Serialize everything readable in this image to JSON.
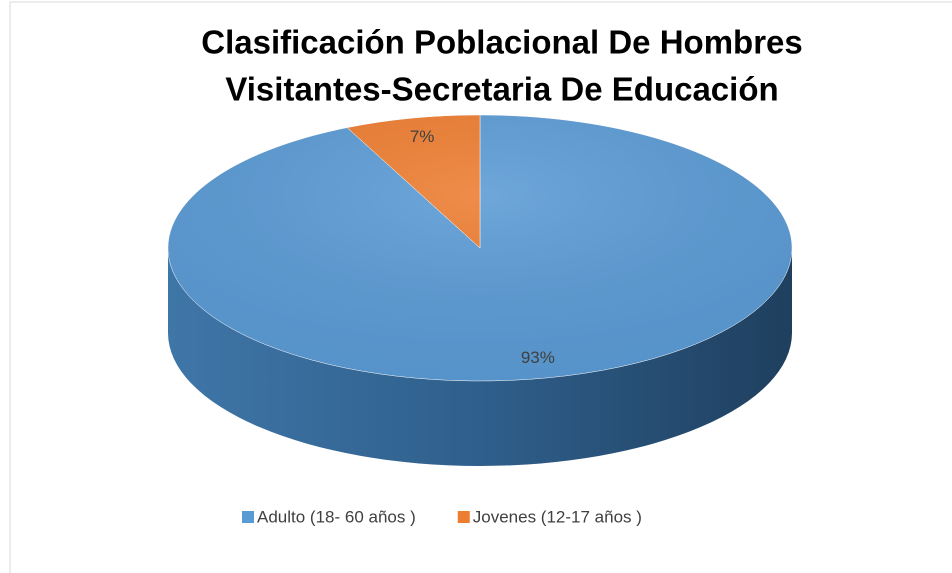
{
  "chart_data": {
    "type": "pie",
    "title": [
      "Clasificación Poblacional  De Hombres",
      "Visitantes-Secretaria De Educación"
    ],
    "categories": [
      "Adulto (18- 60 años )",
      "Jovenes  (12-17 años )"
    ],
    "values": [
      93,
      7
    ],
    "value_labels": [
      "93%",
      "7%"
    ],
    "colors": [
      "#5b9bd5",
      "#ed7d31"
    ],
    "legend": "bottom"
  }
}
